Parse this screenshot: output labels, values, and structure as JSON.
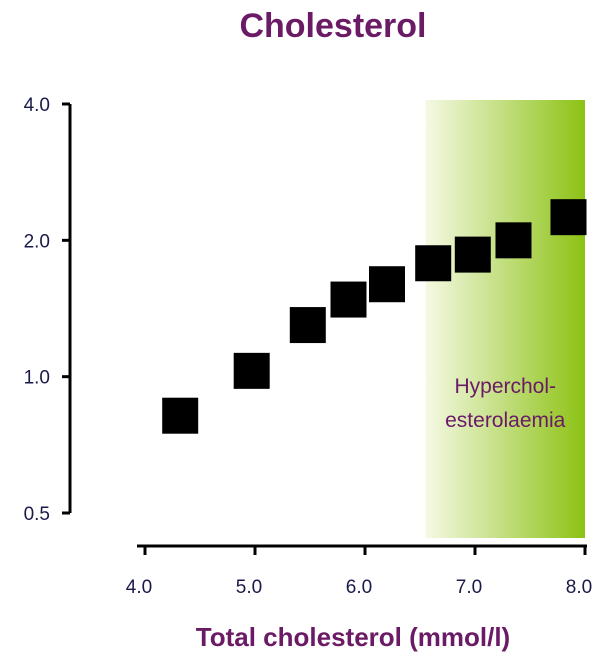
{
  "chart_data": {
    "type": "scatter",
    "title": "Cholesterol",
    "xlabel": "Total cholesterol (mmol/l)",
    "ylabel": "",
    "x_ticks": [
      "4.0",
      "5.0",
      "6.0",
      "7.0",
      "8.0"
    ],
    "x_tick_values": [
      4.0,
      5.0,
      6.0,
      7.0,
      8.0
    ],
    "y_ticks": [
      "4.0",
      "2.0",
      "1.0",
      "0.5"
    ],
    "y_tick_values": [
      4.0,
      2.0,
      1.0,
      0.5
    ],
    "y_scale": "log",
    "xlim": [
      3.95,
      8.1
    ],
    "ylim": [
      0.5,
      4.0
    ],
    "grid": false,
    "points": [
      {
        "x": 4.32,
        "y": 0.82
      },
      {
        "x": 4.97,
        "y": 1.03
      },
      {
        "x": 5.48,
        "y": 1.3
      },
      {
        "x": 5.85,
        "y": 1.48
      },
      {
        "x": 6.2,
        "y": 1.6
      },
      {
        "x": 6.62,
        "y": 1.78
      },
      {
        "x": 6.98,
        "y": 1.86
      },
      {
        "x": 7.35,
        "y": 2.0
      },
      {
        "x": 7.85,
        "y": 2.25
      }
    ],
    "band": {
      "x_start": 6.55,
      "x_end": 8.0,
      "label_lines": [
        "Hyperchol-",
        "esterolaemia"
      ],
      "color_start": "#f5f9e4",
      "color_end": "#8cc214"
    },
    "marker_color": "#000000",
    "text_color": "#6b1a66",
    "tick_color": "#1a1a4a"
  }
}
